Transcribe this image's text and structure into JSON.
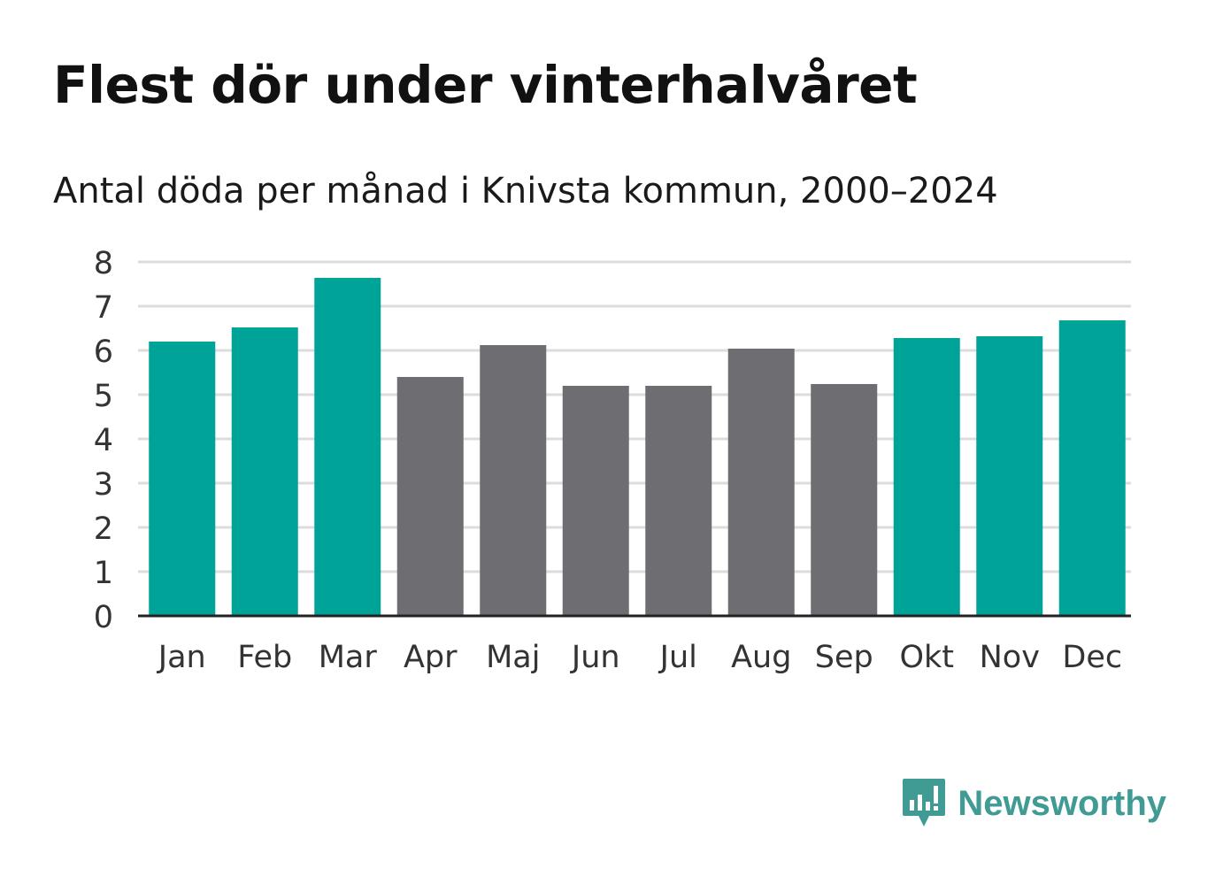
{
  "header": {
    "title": "Flest dör under vinterhalvåret",
    "subtitle": "Antal döda per månad i Knivsta kommun, 2000–2024"
  },
  "brand": {
    "name": "Newsworthy",
    "color": "#3f9b93",
    "icon": "newsworthy-chart-bubble-icon"
  },
  "colors": {
    "winter": "#00a398",
    "summer": "#6e6d72",
    "grid": "#dcdcdc",
    "axis": "#222222",
    "tick_text": "#333333"
  },
  "chart_data": {
    "type": "bar",
    "title": "Flest dör under vinterhalvåret",
    "subtitle": "Antal döda per månad i Knivsta kommun, 2000–2024",
    "xlabel": "",
    "ylabel": "",
    "ylim": [
      0,
      8
    ],
    "yticks": [
      0,
      1,
      2,
      3,
      4,
      5,
      6,
      7,
      8
    ],
    "grid": true,
    "categories": [
      "Jan",
      "Feb",
      "Mar",
      "Apr",
      "Maj",
      "Jun",
      "Jul",
      "Aug",
      "Sep",
      "Okt",
      "Nov",
      "Dec"
    ],
    "values": [
      6.2,
      6.52,
      7.64,
      5.4,
      6.12,
      5.2,
      5.2,
      6.04,
      5.24,
      6.28,
      6.32,
      6.68
    ],
    "groups": [
      "winter",
      "winter",
      "winter",
      "summer",
      "summer",
      "summer",
      "summer",
      "summer",
      "summer",
      "winter",
      "winter",
      "winter"
    ]
  }
}
